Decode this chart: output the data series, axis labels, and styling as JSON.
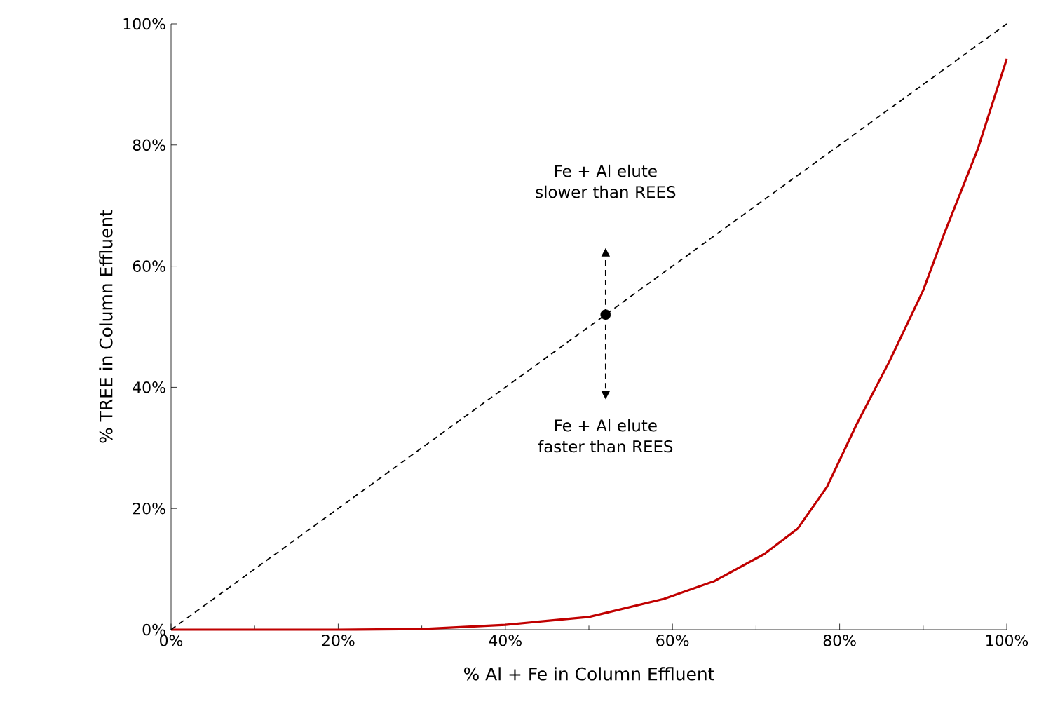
{
  "chart_data": {
    "type": "line",
    "xlabel": "% Al + Fe in Column Effluent",
    "ylabel": "% TREE in Column Effluent",
    "xlim": [
      0,
      100
    ],
    "ylim": [
      0,
      100
    ],
    "xticks": [
      {
        "value": 0,
        "label": "0%"
      },
      {
        "value": 20,
        "label": "20%"
      },
      {
        "value": 40,
        "label": "40%"
      },
      {
        "value": 60,
        "label": "60%"
      },
      {
        "value": 80,
        "label": "80%"
      },
      {
        "value": 100,
        "label": "100%"
      }
    ],
    "yticks": [
      {
        "value": 0,
        "label": "0%"
      },
      {
        "value": 20,
        "label": "20%"
      },
      {
        "value": 40,
        "label": "40%"
      },
      {
        "value": 60,
        "label": "60%"
      },
      {
        "value": 80,
        "label": "80%"
      },
      {
        "value": 100,
        "label": "100%"
      }
    ],
    "grid": false,
    "series": [
      {
        "color": "#c00000",
        "line_style": "solid",
        "x": [
          0,
          20,
          30,
          40,
          50,
          59,
          65,
          71,
          75,
          78.5,
          82,
          86,
          90,
          92.5,
          96.5,
          100
        ],
        "values": [
          0,
          0,
          0.1,
          0.8,
          2.1,
          5.1,
          8,
          12.5,
          16.7,
          23.6,
          33.8,
          44.4,
          56,
          65.3,
          79.2,
          94.2
        ]
      },
      {
        "type": "line",
        "color": "#000000",
        "line_style": "dashed",
        "x": [
          0,
          100
        ],
        "values": [
          0,
          100
        ]
      },
      {
        "type": "scatter",
        "color": "#000000",
        "marker": "circle",
        "x": [
          52
        ],
        "values": [
          52
        ]
      }
    ],
    "annotations": [
      "Fe + Al elute slower than REES",
      "Fe + Al elute faster than REES"
    ]
  }
}
